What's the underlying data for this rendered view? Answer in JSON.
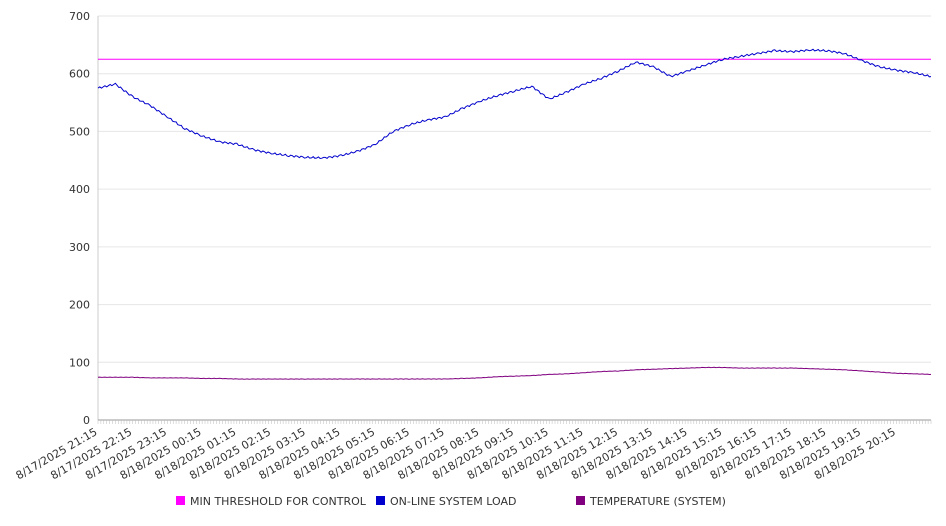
{
  "chart_data": {
    "type": "line",
    "ylim": [
      0,
      700
    ],
    "yticks": [
      0,
      100,
      200,
      300,
      400,
      500,
      600,
      700
    ],
    "x_tick_labels": [
      "8/17/2025 21:15",
      "8/17/2025 22:15",
      "8/17/2025 23:15",
      "8/18/2025 00:15",
      "8/18/2025 01:15",
      "8/18/2025 02:15",
      "8/18/2025 03:15",
      "8/18/2025 04:15",
      "8/18/2025 05:15",
      "8/18/2025 06:15",
      "8/18/2025 07:15",
      "8/18/2025 08:15",
      "8/18/2025 09:15",
      "8/18/2025 10:15",
      "8/18/2025 11:15",
      "8/18/2025 12:15",
      "8/18/2025 13:15",
      "8/18/2025 14:15",
      "8/18/2025 15:15",
      "8/18/2025 16:15",
      "8/18/2025 17:15",
      "8/18/2025 18:15",
      "8/18/2025 19:15",
      "8/18/2025 20:15"
    ],
    "x_hours": [
      0,
      0.5,
      1,
      1.5,
      2,
      2.5,
      3,
      3.5,
      4,
      4.5,
      5,
      5.5,
      6,
      6.5,
      7,
      7.5,
      8,
      8.5,
      9,
      9.5,
      10,
      10.5,
      11,
      11.5,
      12,
      12.5,
      13,
      13.5,
      14,
      14.5,
      15,
      15.5,
      16,
      16.5,
      17,
      17.5,
      18,
      18.5,
      19,
      19.5,
      20,
      20.5,
      21,
      21.5,
      22,
      22.5,
      23,
      23.5,
      24
    ],
    "series": [
      {
        "name": "MIN THRESHOLD FOR CONTROL",
        "color": "#ff00ff",
        "values": [
          625,
          625,
          625,
          625,
          625,
          625,
          625,
          625,
          625,
          625,
          625,
          625,
          625,
          625,
          625,
          625,
          625,
          625,
          625,
          625,
          625,
          625,
          625,
          625,
          625,
          625,
          625,
          625,
          625,
          625,
          625,
          625,
          625,
          625,
          625,
          625,
          625,
          625,
          625,
          625,
          625,
          625,
          625,
          625,
          625,
          625,
          625,
          625,
          625
        ]
      },
      {
        "name": "ON-LINE SYSTEM LOAD",
        "color": "#0000cc",
        "values": [
          575,
          582,
          560,
          545,
          525,
          505,
          492,
          482,
          478,
          468,
          462,
          458,
          455,
          454,
          458,
          466,
          478,
          500,
          512,
          520,
          525,
          540,
          552,
          562,
          570,
          578,
          556,
          568,
          582,
          592,
          605,
          620,
          612,
          595,
          605,
          615,
          625,
          630,
          635,
          640,
          638,
          641,
          640,
          635,
          623,
          612,
          606,
          602,
          595
        ]
      },
      {
        "name": "TEMPERATURE (SYSTEM)",
        "color": "#800080",
        "values": [
          74,
          74,
          74,
          73,
          73,
          73,
          72,
          72,
          71,
          71,
          71,
          71,
          71,
          71,
          71,
          71,
          71,
          71,
          71,
          71,
          71,
          72,
          73,
          75,
          76,
          77,
          79,
          80,
          82,
          84,
          85,
          87,
          88,
          89,
          90,
          91,
          91,
          90,
          90,
          90,
          90,
          89,
          88,
          87,
          85,
          83,
          81,
          80,
          79
        ]
      }
    ]
  }
}
